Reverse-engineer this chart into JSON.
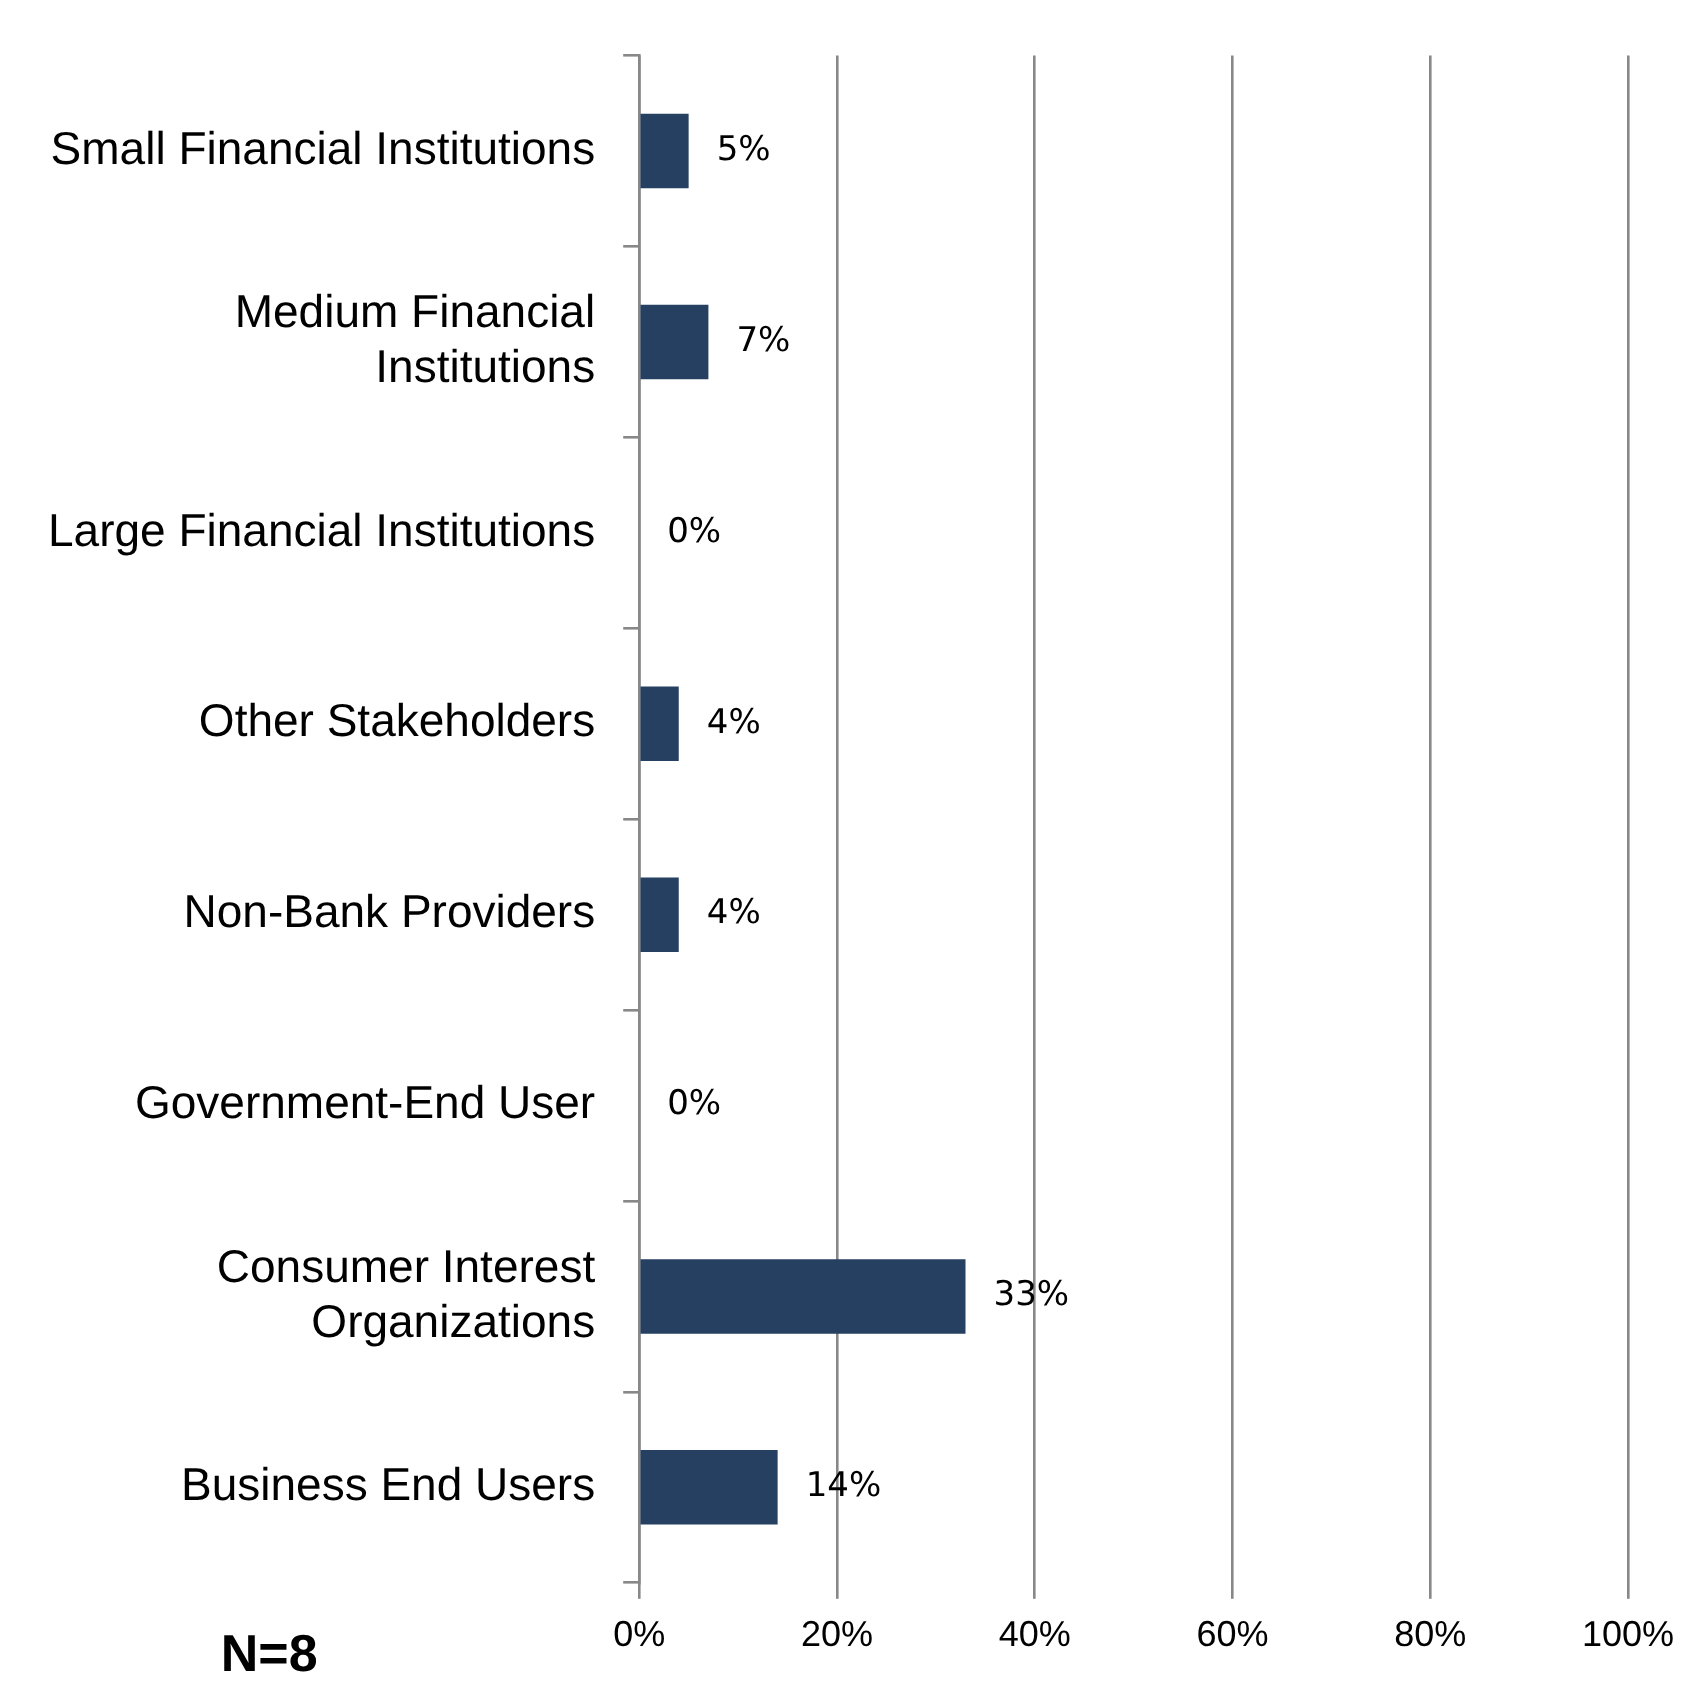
{
  "chart_data": {
    "type": "bar",
    "orientation": "horizontal",
    "categories": [
      "Small Financial Institutions",
      "Medium Financial Institutions",
      "Large Financial Institutions",
      "Other Stakeholders",
      "Non-Bank Providers",
      "Government-End User",
      "Consumer Interest Organizations",
      "Business End Users"
    ],
    "values": [
      5,
      7,
      0,
      4,
      4,
      0,
      33,
      14
    ],
    "value_labels": [
      "5%",
      "7%",
      "0%",
      "4%",
      "4%",
      "0%",
      "33%",
      "14%"
    ],
    "color": "#254061",
    "xlim": [
      0,
      100
    ],
    "xticks": [
      {
        "value": 0,
        "label": "0%"
      },
      {
        "value": 20,
        "label": "20%"
      },
      {
        "value": 40,
        "label": "40%"
      },
      {
        "value": 60,
        "label": "60%"
      },
      {
        "value": 80,
        "label": "80%"
      },
      {
        "value": 100,
        "label": "100%"
      }
    ],
    "grid": "x",
    "legend": false,
    "annotations": [
      "N=8"
    ]
  }
}
